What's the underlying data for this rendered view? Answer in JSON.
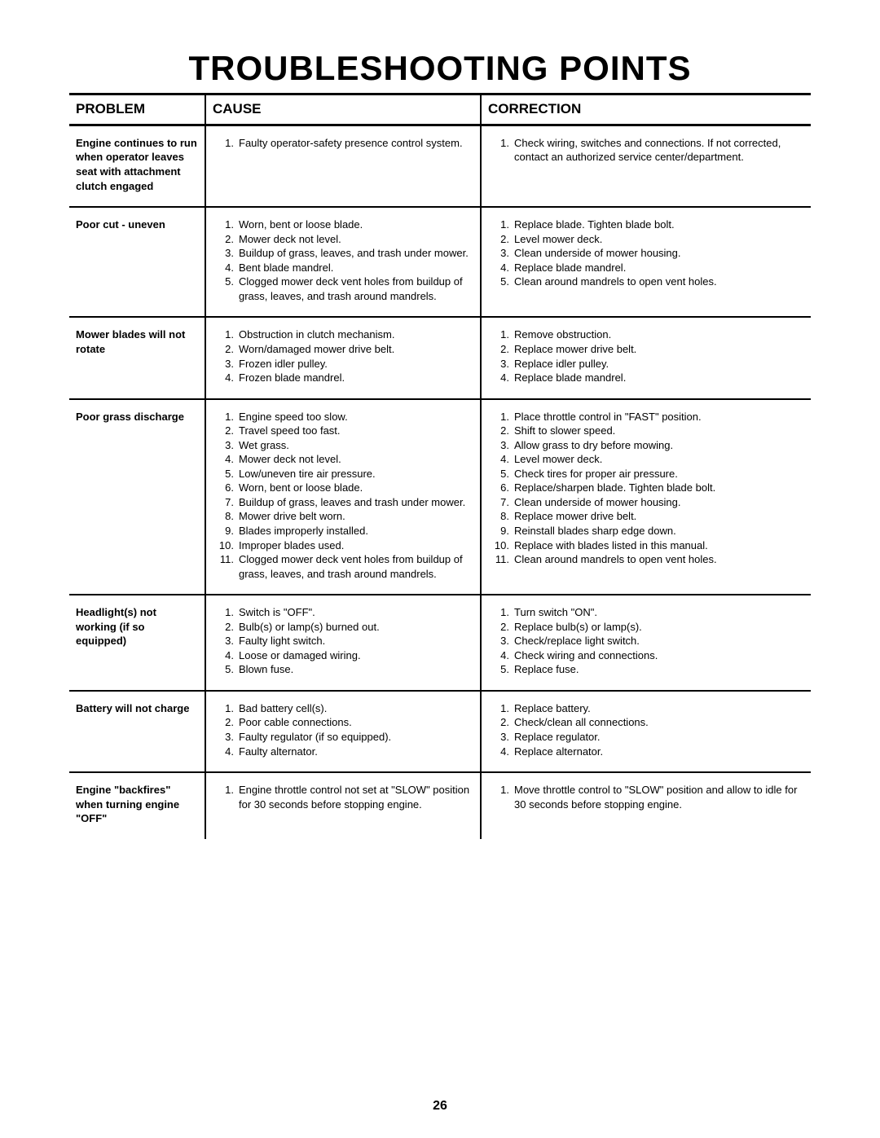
{
  "page": {
    "title": "TROUBLESHOOTING POINTS",
    "page_number": "26",
    "headers": {
      "problem": "PROBLEM",
      "cause": "CAUSE",
      "correction": "CORRECTION"
    },
    "rows": [
      {
        "problem": "Engine continues to run when operator leaves seat with attachment clutch engaged",
        "causes": [
          "Faulty operator-safety presence control system."
        ],
        "corrections": [
          "Check wiring, switches and connections. If not corrected, contact an authorized service center/department."
        ]
      },
      {
        "problem": "Poor cut - uneven",
        "causes": [
          "Worn, bent or loose blade.",
          "Mower deck not level.",
          "Buildup of grass, leaves, and trash under mower.",
          "Bent blade mandrel.",
          "Clogged mower deck vent holes from buildup of grass, leaves, and trash around mandrels."
        ],
        "corrections": [
          "Replace blade. Tighten blade bolt.",
          "Level mower deck.",
          "Clean underside of mower housing.",
          "Replace blade mandrel.",
          "Clean around mandrels to open vent holes."
        ]
      },
      {
        "problem": "Mower blades will not rotate",
        "causes": [
          "Obstruction in clutch mechanism.",
          "Worn/damaged mower drive belt.",
          "Frozen idler pulley.",
          "Frozen blade mandrel."
        ],
        "corrections": [
          "Remove obstruction.",
          "Replace mower drive belt.",
          "Replace idler pulley.",
          "Replace blade mandrel."
        ]
      },
      {
        "problem": "Poor grass discharge",
        "causes": [
          "Engine speed too slow.",
          "Travel speed too fast.",
          "Wet grass.",
          "Mower deck not level.",
          "Low/uneven tire air pressure.",
          "Worn, bent or loose blade.",
          "Buildup of grass, leaves and trash under mower.",
          "Mower drive belt worn.",
          "Blades improperly installed.",
          "Improper blades used.",
          "Clogged mower deck vent holes from buildup of grass, leaves, and trash around mandrels."
        ],
        "corrections": [
          "Place throttle control in \"FAST\" position.",
          "Shift to slower speed.",
          "Allow grass to dry before mowing.",
          "Level mower deck.",
          "Check tires for proper air pressure.",
          "Replace/sharpen blade. Tighten blade bolt.",
          "Clean underside of mower housing.",
          "Replace mower drive belt.",
          "Reinstall blades sharp edge down.",
          "Replace with blades listed in this manual.",
          "Clean around mandrels to open vent holes."
        ]
      },
      {
        "problem": "Headlight(s) not working (if so equipped)",
        "causes": [
          "Switch is \"OFF\".",
          "Bulb(s) or lamp(s) burned out.",
          "Faulty light switch.",
          "Loose or damaged wiring.",
          "Blown fuse."
        ],
        "corrections": [
          "Turn switch \"ON\".",
          "Replace bulb(s) or lamp(s).",
          "Check/replace light switch.",
          "Check wiring and connections.",
          "Replace fuse."
        ]
      },
      {
        "problem": "Battery will not charge",
        "causes": [
          "Bad battery cell(s).",
          "Poor cable connections.",
          "Faulty regulator (if so equipped).",
          "Faulty alternator."
        ],
        "corrections": [
          "Replace battery.",
          "Check/clean all connections.",
          "Replace regulator.",
          "Replace alternator."
        ]
      },
      {
        "problem": "Engine \"backfires\" when turning engine \"OFF\"",
        "causes": [
          "Engine throttle control not set at \"SLOW\" position for 30 seconds before stopping engine."
        ],
        "corrections": [
          "Move throttle control to \"SLOW\" position and allow to idle for 30 seconds before stopping engine."
        ]
      }
    ]
  }
}
